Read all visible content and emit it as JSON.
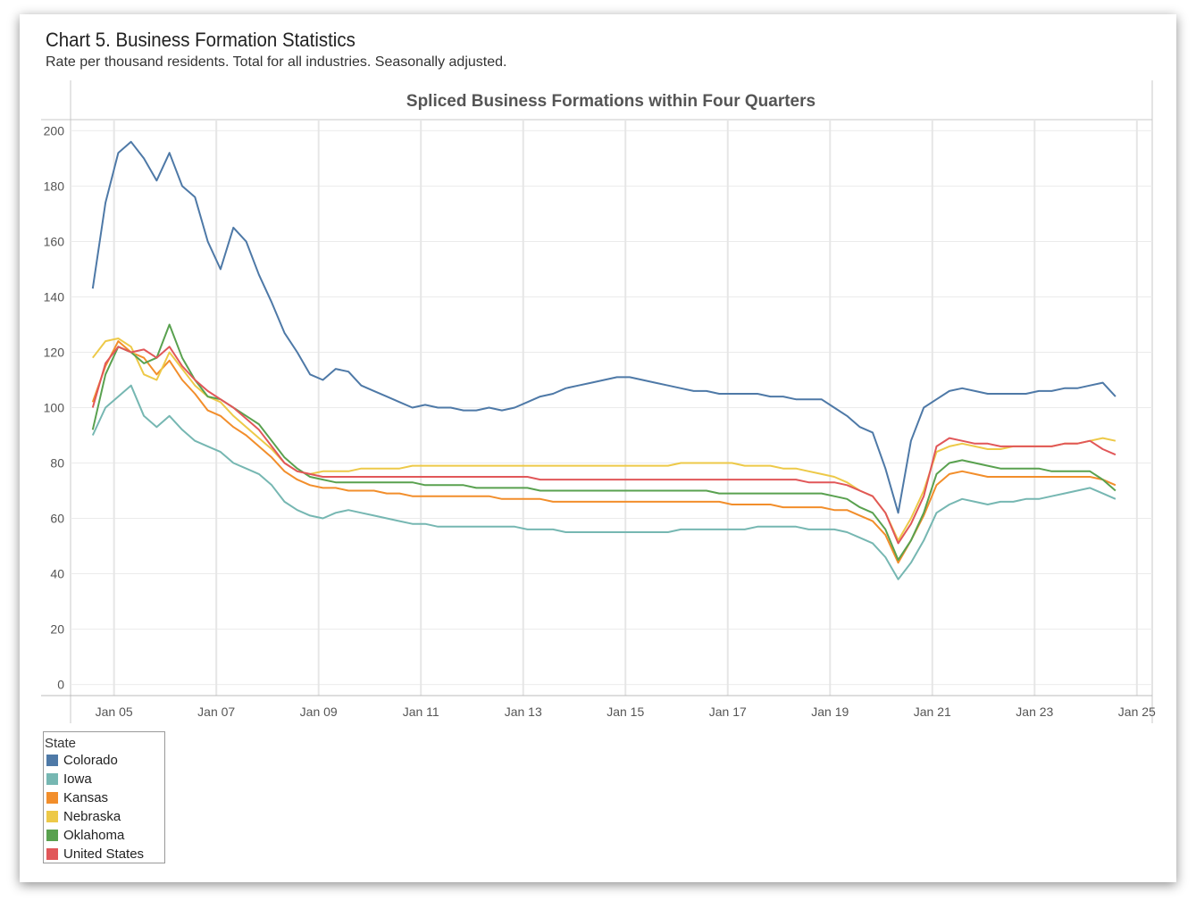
{
  "header": {
    "title": "Chart 5. Business Formation Statistics",
    "subtitle": "Rate per thousand residents. Total for all industries. Seasonally adjusted."
  },
  "chart_data": {
    "type": "line",
    "title": "Spliced Business Formations within Four Quarters",
    "xlabel": "",
    "ylabel": "",
    "x_ticks": [
      "Jan 05",
      "Jan 07",
      "Jan 09",
      "Jan 11",
      "Jan 13",
      "Jan 15",
      "Jan 17",
      "Jan 19",
      "Jan 21",
      "Jan 23",
      "Jan 25"
    ],
    "y_ticks": [
      0,
      20,
      40,
      60,
      80,
      100,
      120,
      140,
      160,
      180,
      200
    ],
    "xlim": [
      2004.15,
      2025.3
    ],
    "ylim": [
      -4,
      204
    ],
    "grid": true,
    "legend_title": "State",
    "legend_position": "bottom-left",
    "x": [
      2004.583,
      2004.833,
      2005.083,
      2005.333,
      2005.583,
      2005.833,
      2006.083,
      2006.333,
      2006.583,
      2006.833,
      2007.083,
      2007.333,
      2007.583,
      2007.833,
      2008.083,
      2008.333,
      2008.583,
      2008.833,
      2009.083,
      2009.333,
      2009.583,
      2009.833,
      2010.083,
      2010.333,
      2010.583,
      2010.833,
      2011.083,
      2011.333,
      2011.583,
      2011.833,
      2012.083,
      2012.333,
      2012.583,
      2012.833,
      2013.083,
      2013.333,
      2013.583,
      2013.833,
      2014.083,
      2014.333,
      2014.583,
      2014.833,
      2015.083,
      2015.333,
      2015.583,
      2015.833,
      2016.083,
      2016.333,
      2016.583,
      2016.833,
      2017.083,
      2017.333,
      2017.583,
      2017.833,
      2018.083,
      2018.333,
      2018.583,
      2018.833,
      2019.083,
      2019.333,
      2019.583,
      2019.833,
      2020.083,
      2020.333,
      2020.583,
      2020.833,
      2021.083,
      2021.333,
      2021.583,
      2021.833,
      2022.083,
      2022.333,
      2022.583,
      2022.833,
      2023.083,
      2023.333,
      2023.583,
      2023.833,
      2024.083,
      2024.333,
      2024.583
    ],
    "series": [
      {
        "name": "Colorado",
        "color": "#4e79a7",
        "values": [
          143,
          174,
          192,
          196,
          190,
          182,
          192,
          180,
          176,
          160,
          150,
          165,
          160,
          148,
          138,
          127,
          120,
          112,
          110,
          114,
          113,
          108,
          106,
          104,
          102,
          100,
          101,
          100,
          100,
          99,
          99,
          100,
          99,
          100,
          102,
          104,
          105,
          107,
          108,
          109,
          110,
          111,
          111,
          110,
          109,
          108,
          107,
          106,
          106,
          105,
          105,
          105,
          105,
          104,
          104,
          103,
          103,
          103,
          100,
          97,
          93,
          91,
          78,
          62,
          88,
          100,
          103,
          106,
          107,
          106,
          105,
          105,
          105,
          105,
          106,
          106,
          107,
          107,
          108,
          109,
          104
        ]
      },
      {
        "name": "Iowa",
        "color": "#76b7b2",
        "values": [
          90,
          100,
          104,
          108,
          97,
          93,
          97,
          92,
          88,
          86,
          84,
          80,
          78,
          76,
          72,
          66,
          63,
          61,
          60,
          62,
          63,
          62,
          61,
          60,
          59,
          58,
          58,
          57,
          57,
          57,
          57,
          57,
          57,
          57,
          56,
          56,
          56,
          55,
          55,
          55,
          55,
          55,
          55,
          55,
          55,
          55,
          56,
          56,
          56,
          56,
          56,
          56,
          57,
          57,
          57,
          57,
          56,
          56,
          56,
          55,
          53,
          51,
          46,
          38,
          44,
          52,
          62,
          65,
          67,
          66,
          65,
          66,
          66,
          67,
          67,
          68,
          69,
          70,
          71,
          69,
          67
        ]
      },
      {
        "name": "Kansas",
        "color": "#f28e2b",
        "values": [
          102,
          115,
          124,
          120,
          118,
          112,
          117,
          110,
          105,
          99,
          97,
          93,
          90,
          86,
          82,
          77,
          74,
          72,
          71,
          71,
          70,
          70,
          70,
          69,
          69,
          68,
          68,
          68,
          68,
          68,
          68,
          68,
          67,
          67,
          67,
          67,
          66,
          66,
          66,
          66,
          66,
          66,
          66,
          66,
          66,
          66,
          66,
          66,
          66,
          66,
          65,
          65,
          65,
          65,
          64,
          64,
          64,
          64,
          63,
          63,
          61,
          59,
          54,
          44,
          52,
          61,
          72,
          76,
          77,
          76,
          75,
          75,
          75,
          75,
          75,
          75,
          75,
          75,
          75,
          74,
          72
        ]
      },
      {
        "name": "Nebraska",
        "color": "#edc948",
        "values": [
          118,
          124,
          125,
          122,
          112,
          110,
          120,
          114,
          108,
          104,
          102,
          97,
          93,
          89,
          85,
          80,
          77,
          76,
          77,
          77,
          77,
          78,
          78,
          78,
          78,
          79,
          79,
          79,
          79,
          79,
          79,
          79,
          79,
          79,
          79,
          79,
          79,
          79,
          79,
          79,
          79,
          79,
          79,
          79,
          79,
          79,
          80,
          80,
          80,
          80,
          80,
          79,
          79,
          79,
          78,
          78,
          77,
          76,
          75,
          73,
          70,
          68,
          62,
          52,
          60,
          70,
          84,
          86,
          87,
          86,
          85,
          85,
          86,
          86,
          86,
          86,
          87,
          87,
          88,
          89,
          88
        ]
      },
      {
        "name": "Oklahoma",
        "color": "#59a14f",
        "values": [
          92,
          112,
          122,
          120,
          116,
          118,
          130,
          118,
          110,
          104,
          103,
          100,
          97,
          94,
          88,
          82,
          78,
          75,
          74,
          73,
          73,
          73,
          73,
          73,
          73,
          73,
          72,
          72,
          72,
          72,
          71,
          71,
          71,
          71,
          71,
          70,
          70,
          70,
          70,
          70,
          70,
          70,
          70,
          70,
          70,
          70,
          70,
          70,
          70,
          69,
          69,
          69,
          69,
          69,
          69,
          69,
          69,
          69,
          68,
          67,
          64,
          62,
          56,
          45,
          52,
          62,
          76,
          80,
          81,
          80,
          79,
          78,
          78,
          78,
          78,
          77,
          77,
          77,
          77,
          74,
          70
        ]
      },
      {
        "name": "United States",
        "color": "#e15759",
        "values": [
          100,
          116,
          122,
          120,
          121,
          118,
          122,
          115,
          110,
          106,
          103,
          100,
          96,
          92,
          86,
          80,
          77,
          76,
          75,
          75,
          75,
          75,
          75,
          75,
          75,
          75,
          75,
          75,
          75,
          75,
          75,
          75,
          75,
          75,
          75,
          74,
          74,
          74,
          74,
          74,
          74,
          74,
          74,
          74,
          74,
          74,
          74,
          74,
          74,
          74,
          74,
          74,
          74,
          74,
          74,
          74,
          73,
          73,
          73,
          72,
          70,
          68,
          62,
          51,
          58,
          68,
          86,
          89,
          88,
          87,
          87,
          86,
          86,
          86,
          86,
          86,
          87,
          87,
          88,
          85,
          83
        ]
      }
    ]
  }
}
